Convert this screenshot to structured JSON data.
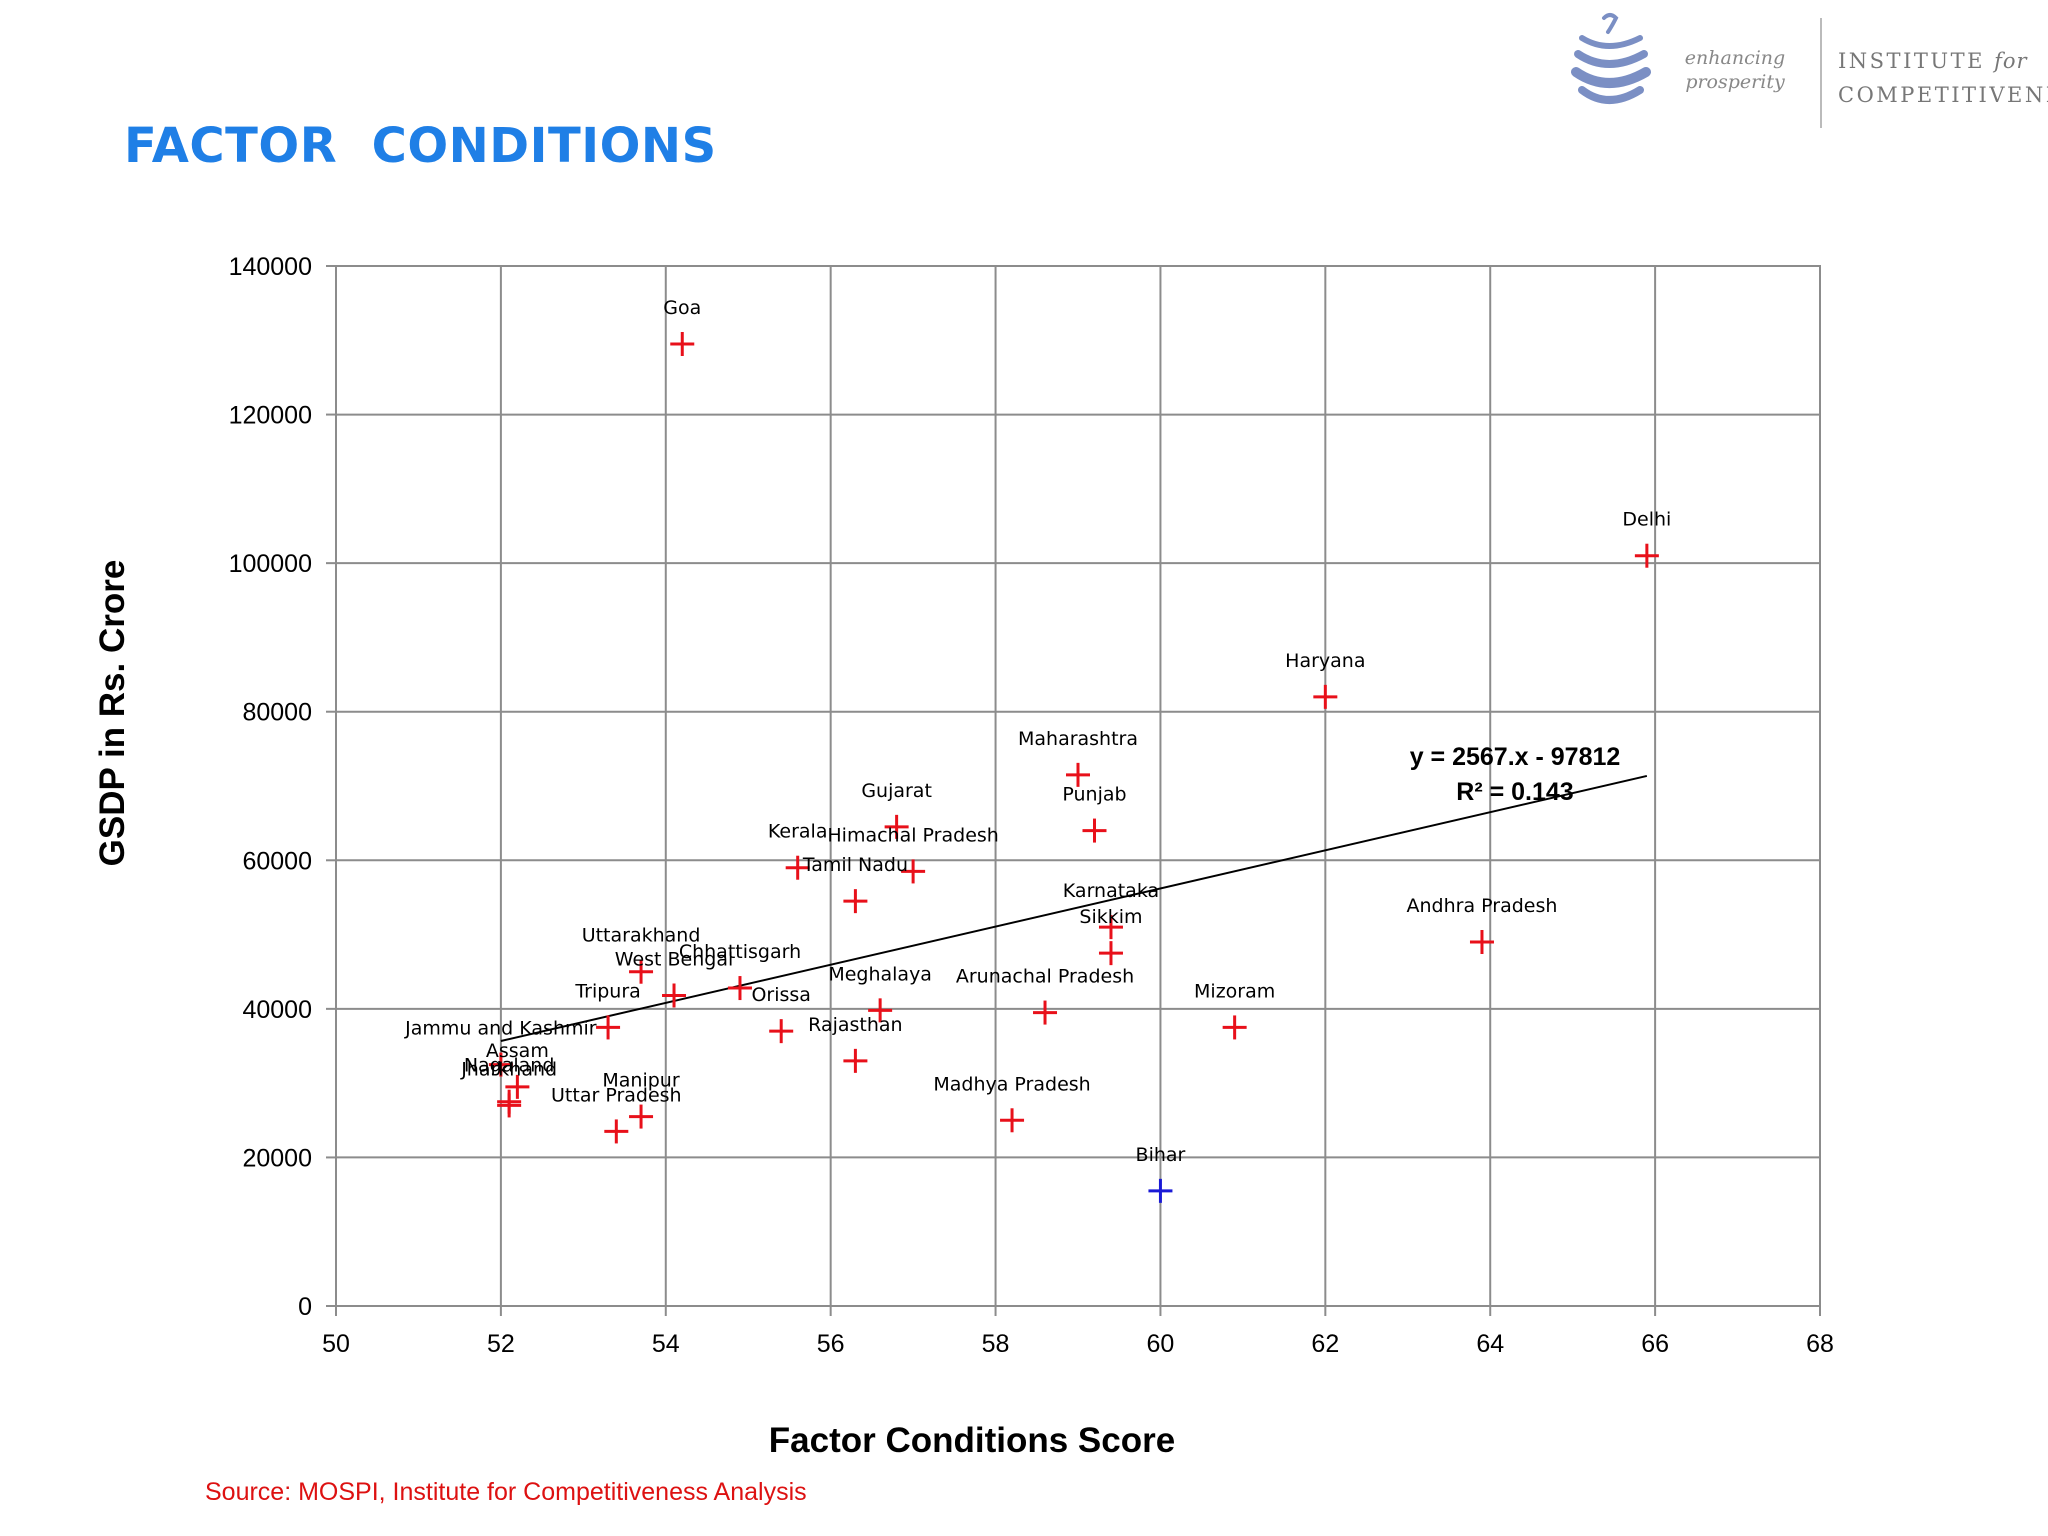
{
  "slide": {
    "title": "FACTOR  CONDITIONS",
    "source": "Source: MOSPI, Institute for Competitiveness Analysis"
  },
  "logo": {
    "tagline_line1": "enhancing",
    "tagline_line2": "prosperity",
    "name_line1": "INSTITUTE",
    "name_line1_italic": "for",
    "name_line2": "COMPETITIVENESS",
    "emblem_color": "#7b8fc4"
  },
  "colors": {
    "title": "#1f7fe6",
    "marker_default": "#e8101a",
    "marker_highlight": "#1a1ad6",
    "grid": "#8c8c8c",
    "source_text": "#dd1111"
  },
  "chart_data": {
    "type": "scatter",
    "xlabel": "Factor Conditions Score",
    "ylabel": "GSDP in Rs. Crore",
    "xlim": [
      50,
      68
    ],
    "ylim": [
      0,
      140000
    ],
    "x_ticks": [
      50,
      52,
      54,
      56,
      58,
      60,
      62,
      64,
      66,
      68
    ],
    "y_ticks": [
      0,
      20000,
      40000,
      60000,
      80000,
      100000,
      120000,
      140000
    ],
    "grid": true,
    "marker": "cross",
    "points": [
      {
        "label": "Goa",
        "x": 54.2,
        "y": 129500,
        "color": "#e8101a"
      },
      {
        "label": "Delhi",
        "x": 65.9,
        "y": 101000,
        "color": "#e8101a"
      },
      {
        "label": "Haryana",
        "x": 62.0,
        "y": 82000,
        "color": "#e8101a"
      },
      {
        "label": "Maharashtra",
        "x": 59.0,
        "y": 71500,
        "color": "#e8101a"
      },
      {
        "label": "Punjab",
        "x": 59.2,
        "y": 64000,
        "color": "#e8101a"
      },
      {
        "label": "Gujarat",
        "x": 56.8,
        "y": 64500,
        "color": "#e8101a"
      },
      {
        "label": "Kerala",
        "x": 55.6,
        "y": 59000,
        "color": "#e8101a"
      },
      {
        "label": "Himachal Pradesh",
        "x": 57.0,
        "y": 58500,
        "color": "#e8101a"
      },
      {
        "label": "Tamil Nadu",
        "x": 56.3,
        "y": 54500,
        "color": "#e8101a"
      },
      {
        "label": "Karnataka",
        "x": 59.4,
        "y": 51000,
        "color": "#e8101a"
      },
      {
        "label": "Sikkim",
        "x": 59.4,
        "y": 47500,
        "color": "#e8101a"
      },
      {
        "label": "Andhra Pradesh",
        "x": 63.9,
        "y": 49000,
        "color": "#e8101a"
      },
      {
        "label": "Uttarakhand",
        "x": 53.7,
        "y": 45000,
        "color": "#e8101a"
      },
      {
        "label": "West Bengal",
        "x": 54.1,
        "y": 41800,
        "color": "#e8101a"
      },
      {
        "label": "Chhattisgarh",
        "x": 54.9,
        "y": 42800,
        "color": "#e8101a"
      },
      {
        "label": "Tripura",
        "x": 53.3,
        "y": 37500,
        "color": "#e8101a"
      },
      {
        "label": "Orissa",
        "x": 55.4,
        "y": 37000,
        "color": "#e8101a"
      },
      {
        "label": "Meghalaya",
        "x": 56.6,
        "y": 39800,
        "color": "#e8101a"
      },
      {
        "label": "Arunachal Pradesh",
        "x": 58.6,
        "y": 39500,
        "color": "#e8101a"
      },
      {
        "label": "Mizoram",
        "x": 60.9,
        "y": 37500,
        "color": "#e8101a"
      },
      {
        "label": "Rajasthan",
        "x": 56.3,
        "y": 33000,
        "color": "#e8101a"
      },
      {
        "label": "Jammu and Kashmir",
        "x": 52.0,
        "y": 32500,
        "color": "#e8101a"
      },
      {
        "label": "Assam",
        "x": 52.2,
        "y": 29500,
        "color": "#e8101a"
      },
      {
        "label": "Nagaland",
        "x": 52.1,
        "y": 27500,
        "color": "#e8101a"
      },
      {
        "label": "Jharkhand",
        "x": 52.1,
        "y": 27000,
        "color": "#e8101a"
      },
      {
        "label": "Manipur",
        "x": 53.7,
        "y": 25500,
        "color": "#e8101a"
      },
      {
        "label": "Uttar Pradesh",
        "x": 53.4,
        "y": 23500,
        "color": "#e8101a"
      },
      {
        "label": "Madhya Pradesh",
        "x": 58.2,
        "y": 25000,
        "color": "#e8101a"
      },
      {
        "label": "Bihar",
        "x": 60.0,
        "y": 15500,
        "color": "#1a1ad6"
      }
    ],
    "trendline": {
      "slope": 2567,
      "intercept": -97812,
      "x_range": [
        52.0,
        65.9
      ],
      "equation": "y = 2567.x - 97812",
      "r_squared": "R² = 0.143"
    }
  }
}
